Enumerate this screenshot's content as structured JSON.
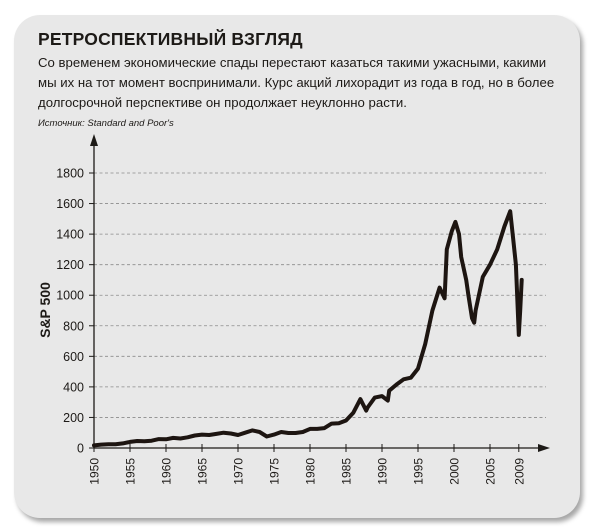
{
  "header": {
    "title": "РЕТРОСПЕКТИВНЫЙ ВЗГЛЯД",
    "subtitle": "Со временем экономические спады перестают казаться такими ужасными, какими мы их на тот момент воспринимали. Курс акций лихорадит из года в год, но в более долгосрочной перспективе он продолжает неуклонно расти.",
    "source": "Источник: Standard and Poor's"
  },
  "chart_data": {
    "type": "line",
    "title": "РЕТРОСПЕКТИВНЫЙ ВЗГЛЯД",
    "xlabel": "",
    "ylabel": "S&P 500",
    "xlim": [
      1950,
      2009
    ],
    "ylim": [
      0,
      1800
    ],
    "x_ticks": [
      "1950",
      "1955",
      "1960",
      "1965",
      "1970",
      "1975",
      "1980",
      "1985",
      "1990",
      "1995",
      "2000",
      "2005",
      "2009"
    ],
    "y_ticks": [
      "0",
      "200",
      "400",
      "600",
      "800",
      "1000",
      "1200",
      "1400",
      "1600",
      "1800"
    ],
    "grid": "horizontal dashed",
    "line_color": "#1d1511",
    "x": [
      1950,
      1951,
      1952,
      1953,
      1954,
      1955,
      1956,
      1957,
      1958,
      1959,
      1960,
      1961,
      1962,
      1963,
      1964,
      1965,
      1966,
      1967,
      1968,
      1969,
      1970,
      1971,
      1972,
      1973,
      1974,
      1975,
      1976,
      1977,
      1978,
      1979,
      1980,
      1981,
      1982,
      1983,
      1984,
      1985,
      1986,
      1987,
      1987.8,
      1988,
      1989,
      1990,
      1990.8,
      1991,
      1992,
      1993,
      1994,
      1995,
      1996,
      1997,
      1998,
      1998.7,
      1999,
      1999.7,
      2000.2,
      2000.7,
      2001,
      2001.7,
      2002,
      2002.5,
      2002.8,
      2003,
      2004,
      2005,
      2006,
      2007,
      2007.8,
      2008.2,
      2008.6,
      2008.9,
      2009,
      2009.2,
      2009.4
    ],
    "values": [
      17,
      22,
      24,
      25,
      30,
      40,
      46,
      44,
      48,
      58,
      57,
      66,
      62,
      70,
      82,
      88,
      85,
      92,
      100,
      95,
      85,
      100,
      115,
      105,
      75,
      88,
      105,
      98,
      98,
      105,
      125,
      125,
      130,
      160,
      162,
      180,
      230,
      320,
      245,
      265,
      330,
      340,
      310,
      375,
      415,
      450,
      460,
      520,
      680,
      900,
      1050,
      980,
      1300,
      1420,
      1480,
      1400,
      1250,
      1100,
      1000,
      850,
      820,
      900,
      1120,
      1200,
      1300,
      1450,
      1550,
      1380,
      1200,
      850,
      740,
      900,
      1100
    ]
  }
}
